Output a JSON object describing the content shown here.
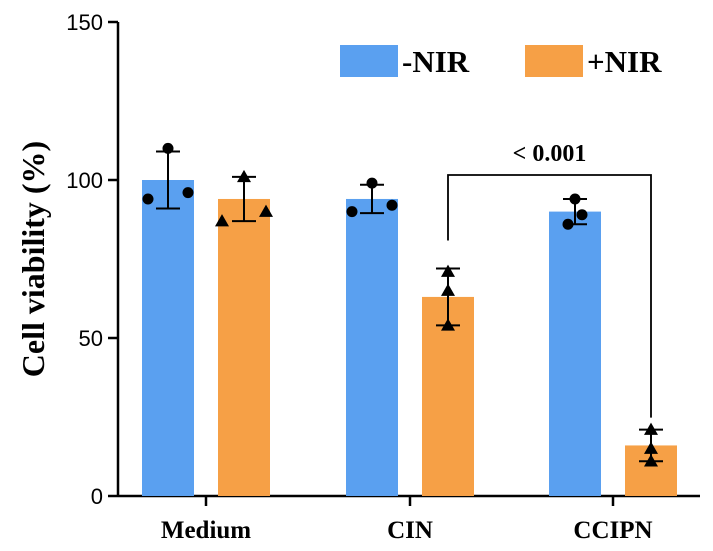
{
  "chart_data": {
    "type": "bar",
    "ylabel": "Cell viability (%)",
    "xlabel": "",
    "ylim": [
      0,
      150
    ],
    "yticks": [
      "0",
      "50",
      "100",
      "150"
    ],
    "categories": [
      "Medium",
      "CIN",
      "CCIPN"
    ],
    "series": [
      {
        "name": "-NIR",
        "color": "#5aa0f0",
        "marker": "circle",
        "values": [
          100,
          94,
          90
        ],
        "errors": [
          9,
          4.5,
          4
        ],
        "points": [
          [
            94,
            96,
            110
          ],
          [
            90,
            92,
            99
          ],
          [
            86,
            89,
            94
          ]
        ]
      },
      {
        "name": "+NIR",
        "color": "#f6a046",
        "marker": "triangle",
        "values": [
          94,
          63,
          16
        ],
        "errors": [
          7,
          9,
          5
        ],
        "points": [
          [
            87,
            90,
            101
          ],
          [
            54,
            65,
            71
          ],
          [
            11,
            15,
            21
          ]
        ]
      }
    ],
    "legend_position": "top-right",
    "annotation": {
      "text": "< 0.001",
      "from": {
        "category": "CIN",
        "series": "+NIR"
      },
      "to": {
        "category": "CCIPN",
        "series": "+NIR"
      }
    }
  }
}
